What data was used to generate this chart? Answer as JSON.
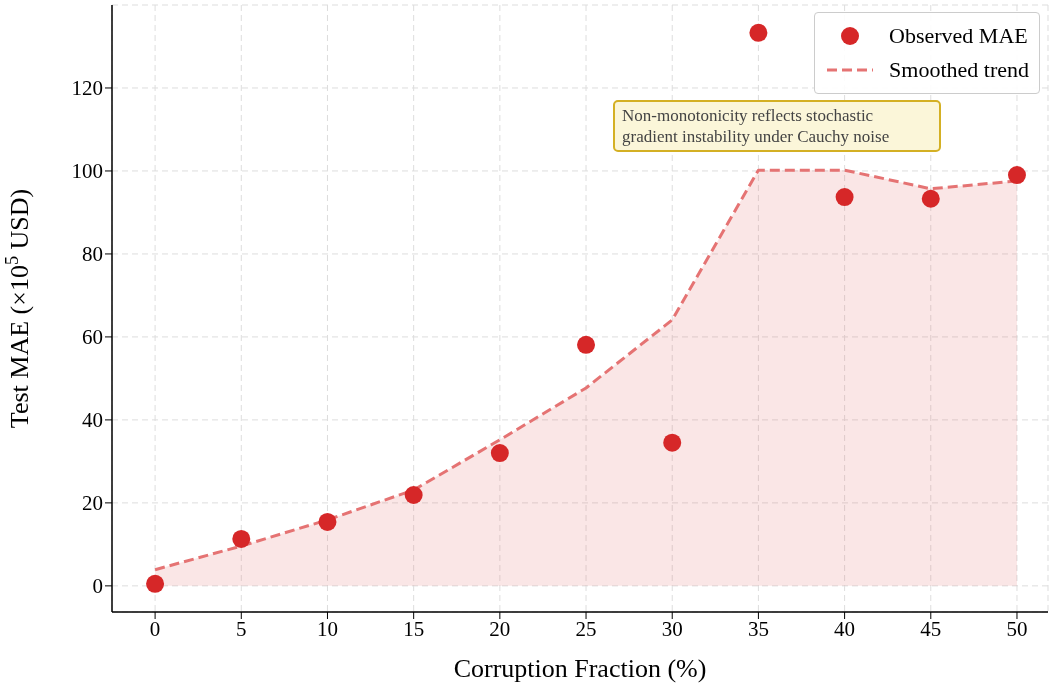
{
  "chart_data": {
    "type": "scatter",
    "xlabel": "Corruption Fraction (%)",
    "ylabel": "Test MAE  (×10$^{5}$ USD)",
    "x": [
      0,
      5,
      10,
      15,
      20,
      25,
      30,
      35,
      40,
      45,
      50
    ],
    "series": [
      {
        "name": "Observed MAE",
        "marker": "circle",
        "color": "#d62728",
        "values": [
          0.5,
          11.3,
          15.4,
          21.9,
          32.0,
          58.1,
          34.5,
          133.3,
          93.7,
          93.3,
          99.0
        ]
      },
      {
        "name": "Smoothed trend",
        "type": "area",
        "marker": "none",
        "color": "#e57373",
        "values": [
          3.9,
          9.6,
          15.9,
          23.1,
          35.2,
          47.7,
          64.1,
          100.2,
          100.2,
          95.7,
          97.6
        ]
      }
    ],
    "xlim": [
      -2.5,
      51.8
    ],
    "xticks": [
      0,
      5,
      10,
      15,
      20,
      25,
      30,
      35,
      40,
      45,
      50
    ],
    "ylim": [
      -6.3,
      140
    ],
    "yticks": [
      0,
      20,
      40,
      60,
      80,
      100,
      120
    ],
    "grid": true,
    "legend": "top right",
    "line_style": "dashed",
    "annotations": [
      "Non-monotonicity reflects stochastic gradient instability under Cauchy noise"
    ]
  }
}
